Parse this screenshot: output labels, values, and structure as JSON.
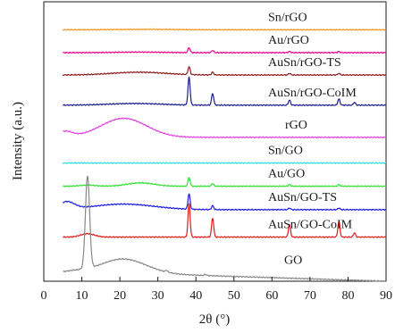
{
  "chart_data": {
    "type": "line",
    "title": "",
    "xlabel": "2θ (°)",
    "ylabel": "Intensity (a.u.)",
    "xlim": [
      0,
      90
    ],
    "x_ticks": [
      0,
      10,
      20,
      30,
      40,
      50,
      60,
      70,
      80,
      90
    ],
    "y_ticks_shown": false,
    "grid": false,
    "legend": "inline labels above each curve",
    "series": [
      {
        "name": "Sn/rGO",
        "color": "#f7941d",
        "baseline": 0.9,
        "humps": [
          {
            "x": 27,
            "height": 0.0015,
            "width": 7
          }
        ],
        "peaks": []
      },
      {
        "name": "Au/rGO",
        "color": "#ec008c",
        "baseline": 0.818,
        "humps": [
          {
            "x": 25,
            "height": 0.002,
            "width": 6
          }
        ],
        "peaks": [
          {
            "x": 38.2,
            "height": 0.018
          },
          {
            "x": 44.4,
            "height": 0.008
          },
          {
            "x": 64.6,
            "height": 0.004
          },
          {
            "x": 77.6,
            "height": 0.004
          }
        ]
      },
      {
        "name": "AuSn/rGO-TS",
        "color": "#8b1c1c",
        "baseline": 0.738,
        "humps": [
          {
            "x": 25,
            "height": 0.01,
            "width": 7
          }
        ],
        "peaks": [
          {
            "x": 38.2,
            "height": 0.028
          },
          {
            "x": 44.4,
            "height": 0.01
          },
          {
            "x": 64.6,
            "height": 0.006
          },
          {
            "x": 77.6,
            "height": 0.006
          }
        ]
      },
      {
        "name": "AuSn/rGO-CoIM",
        "color": "#1c1c8c",
        "baseline": 0.63,
        "humps": [
          {
            "x": 24,
            "height": 0.006,
            "width": 7
          }
        ],
        "peaks": [
          {
            "x": 38.2,
            "height": 0.1
          },
          {
            "x": 44.4,
            "height": 0.042
          },
          {
            "x": 64.6,
            "height": 0.018
          },
          {
            "x": 77.6,
            "height": 0.022
          },
          {
            "x": 81.7,
            "height": 0.01
          }
        ]
      },
      {
        "name": "rGO",
        "color": "#e040e0",
        "baseline": 0.515,
        "humps": [
          {
            "x": 21,
            "height": 0.068,
            "width": 6
          },
          {
            "x": 5.5,
            "height": 0.02,
            "width": 2
          }
        ],
        "peaks": []
      },
      {
        "name": "Sn/GO",
        "color": "#2ae0e0",
        "baseline": 0.423,
        "humps": [],
        "peaks": []
      },
      {
        "name": "Au/GO",
        "color": "#30e030",
        "baseline": 0.34,
        "humps": [
          {
            "x": 25.5,
            "height": 0.012,
            "width": 3.5
          },
          {
            "x": 11.5,
            "height": 0.004,
            "width": 2
          }
        ],
        "peaks": [
          {
            "x": 38.2,
            "height": 0.032
          },
          {
            "x": 44.4,
            "height": 0.01
          },
          {
            "x": 64.6,
            "height": 0.006
          },
          {
            "x": 77.6,
            "height": 0.006
          }
        ]
      },
      {
        "name": "AuSn/GO-TS",
        "color": "#1a1ae0",
        "baseline": 0.256,
        "humps": [
          {
            "x": 21,
            "height": 0.02,
            "width": 8
          },
          {
            "x": 6,
            "height": 0.026,
            "width": 2
          }
        ],
        "peaks": [
          {
            "x": 38.2,
            "height": 0.055
          },
          {
            "x": 44.4,
            "height": 0.014
          },
          {
            "x": 64.6,
            "height": 0.006
          },
          {
            "x": 77.6,
            "height": 0.006
          }
        ]
      },
      {
        "name": "AuSn/GO-CoIM",
        "color": "#e01a1a",
        "baseline": 0.158,
        "humps": [
          {
            "x": 11.5,
            "height": 0.012,
            "width": 1.8
          }
        ],
        "peaks": [
          {
            "x": 38.2,
            "height": 0.12
          },
          {
            "x": 44.4,
            "height": 0.068
          },
          {
            "x": 64.6,
            "height": 0.045
          },
          {
            "x": 77.6,
            "height": 0.055
          },
          {
            "x": 81.7,
            "height": 0.015
          }
        ]
      },
      {
        "name": "GO",
        "color": "#888888",
        "baseline": 0.03,
        "humps": [
          {
            "x": 21,
            "height": 0.05,
            "width": 6
          },
          {
            "x": 8,
            "height": 0.005,
            "width": 3
          }
        ],
        "peaks": [
          {
            "x": 11.5,
            "height": 0.33,
            "width": 0.55
          },
          {
            "x": 32.3,
            "height": 0.006
          },
          {
            "x": 42.5,
            "height": 0.004
          }
        ],
        "decay": {
          "start": 20,
          "end": 90,
          "drop": 0.03
        }
      }
    ]
  }
}
